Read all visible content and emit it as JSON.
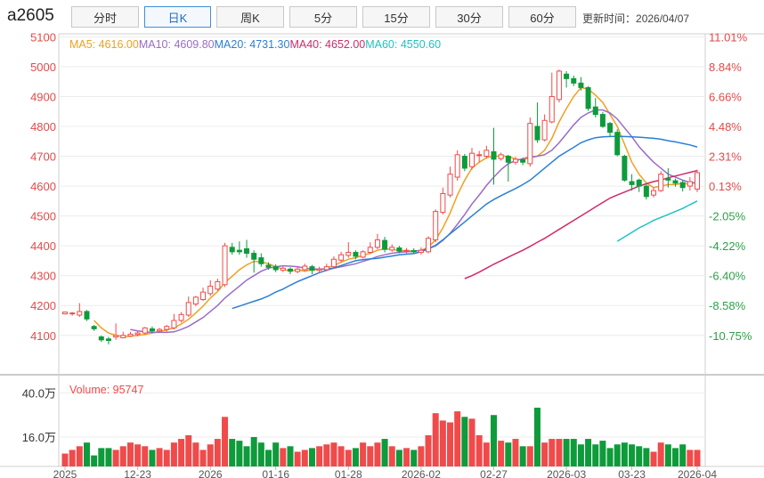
{
  "header": {
    "symbol": "a2605",
    "tabs": [
      {
        "label": "分时",
        "active": false
      },
      {
        "label": "日K",
        "active": true
      },
      {
        "label": "周K",
        "active": false
      },
      {
        "label": "5分",
        "active": false
      },
      {
        "label": "15分",
        "active": false
      },
      {
        "label": "30分",
        "active": false
      },
      {
        "label": "60分",
        "active": false
      }
    ],
    "update_label": "更新时间：",
    "update_time": "2026/04/07"
  },
  "colors": {
    "up": "#f04a4a",
    "down": "#0e9b3b",
    "ma5": "#f0a020",
    "ma10": "#9a6cc8",
    "ma20": "#2a7fd6",
    "ma40": "#d02a6a",
    "ma60": "#20c2c2",
    "axis_left": "#e34a4a",
    "axis_right": "#e34a4a",
    "axis_right_neg": "#2ba24a"
  },
  "chart_data": {
    "type": "candlestick",
    "price_axis": {
      "ticks": [
        5100,
        5000,
        4900,
        4800,
        4700,
        4600,
        4500,
        4400,
        4300,
        4200,
        4100
      ],
      "ylim": [
        3995,
        5110
      ]
    },
    "pct_axis": {
      "ticks": [
        "11.01%",
        "8.84%",
        "6.66%",
        "4.48%",
        "2.31%",
        "0.13%",
        "-2.05%",
        "-4.22%",
        "-6.40%",
        "-8.58%",
        "-10.75%"
      ]
    },
    "date_ticks": [
      "2025",
      "12-23",
      "2026",
      "01-16",
      "01-28",
      "2026-02",
      "02-27",
      "2026-03",
      "03-23",
      "2026-04"
    ],
    "legend": [
      {
        "label": "MA5: ",
        "value": "4616.00",
        "key": "ma5"
      },
      {
        "label": "MA10: ",
        "value": "4609.80",
        "key": "ma10"
      },
      {
        "label": "MA20: ",
        "value": "4731.30",
        "key": "ma20"
      },
      {
        "label": "MA40: ",
        "value": "4652.00",
        "key": "ma40"
      },
      {
        "label": "MA60: ",
        "value": "4550.60",
        "key": "ma60"
      }
    ],
    "volume": {
      "label": "Volume: ",
      "value": "95747",
      "ticks": [
        {
          "v": 40,
          "label": "40.0万"
        },
        {
          "v": 16,
          "label": "16.0万"
        }
      ],
      "ymax": 48
    },
    "candles": [
      [
        4172,
        4178,
        4170,
        4180,
        7
      ],
      [
        4172,
        4175,
        4166,
        4178,
        9
      ],
      [
        4168,
        4180,
        4162,
        4208,
        11
      ],
      [
        4180,
        4155,
        4148,
        4185,
        13
      ],
      [
        4130,
        4122,
        4115,
        4135,
        6
      ],
      [
        4095,
        4085,
        4078,
        4100,
        10
      ],
      [
        4088,
        4083,
        4070,
        4095,
        10
      ],
      [
        4095,
        4100,
        4085,
        4140,
        9
      ],
      [
        4092,
        4100,
        4090,
        4112,
        11
      ],
      [
        4098,
        4104,
        4095,
        4112,
        13
      ],
      [
        4103,
        4108,
        4097,
        4115,
        12
      ],
      [
        4108,
        4125,
        4103,
        4128,
        11
      ],
      [
        4122,
        4115,
        4108,
        4130,
        9
      ],
      [
        4115,
        4120,
        4110,
        4125,
        10
      ],
      [
        4120,
        4130,
        4113,
        4135,
        9
      ],
      [
        4125,
        4150,
        4120,
        4172,
        13
      ],
      [
        4150,
        4170,
        4143,
        4178,
        15
      ],
      [
        4168,
        4210,
        4162,
        4230,
        17
      ],
      [
        4205,
        4228,
        4198,
        4232,
        13
      ],
      [
        4220,
        4245,
        4215,
        4260,
        9
      ],
      [
        4240,
        4265,
        4232,
        4285,
        12
      ],
      [
        4255,
        4280,
        4250,
        4290,
        15
      ],
      [
        4270,
        4400,
        4262,
        4410,
        27
      ],
      [
        4395,
        4380,
        4370,
        4410,
        15
      ],
      [
        4385,
        4380,
        4370,
        4415,
        14
      ],
      [
        4390,
        4375,
        4360,
        4420,
        11
      ],
      [
        4375,
        4355,
        4310,
        4385,
        16
      ],
      [
        4360,
        4340,
        4330,
        4375,
        13
      ],
      [
        4335,
        4328,
        4320,
        4345,
        9
      ],
      [
        4330,
        4320,
        4312,
        4338,
        13
      ],
      [
        4318,
        4325,
        4312,
        4330,
        10
      ],
      [
        4322,
        4315,
        4305,
        4328,
        11
      ],
      [
        4314,
        4322,
        4308,
        4330,
        8
      ],
      [
        4320,
        4332,
        4315,
        4340,
        9
      ],
      [
        4330,
        4318,
        4305,
        4336,
        10
      ],
      [
        4318,
        4322,
        4310,
        4330,
        11
      ],
      [
        4320,
        4330,
        4315,
        4340,
        12
      ],
      [
        4330,
        4355,
        4325,
        4365,
        13
      ],
      [
        4352,
        4370,
        4345,
        4380,
        11
      ],
      [
        4368,
        4378,
        4360,
        4412,
        9
      ],
      [
        4378,
        4365,
        4355,
        4385,
        10
      ],
      [
        4362,
        4380,
        4358,
        4385,
        13
      ],
      [
        4378,
        4395,
        4373,
        4412,
        11
      ],
      [
        4395,
        4420,
        4388,
        4440,
        13
      ],
      [
        4418,
        4388,
        4378,
        4430,
        15
      ],
      [
        4386,
        4395,
        4380,
        4405,
        11
      ],
      [
        4393,
        4382,
        4375,
        4400,
        9
      ],
      [
        4382,
        4385,
        4374,
        4393,
        10
      ],
      [
        4384,
        4380,
        4373,
        4392,
        9
      ],
      [
        4378,
        4385,
        4370,
        4395,
        11
      ],
      [
        4380,
        4425,
        4375,
        4432,
        17
      ],
      [
        4420,
        4515,
        4412,
        4522,
        29
      ],
      [
        4512,
        4575,
        4505,
        4595,
        25
      ],
      [
        4570,
        4640,
        4562,
        4665,
        24
      ],
      [
        4630,
        4705,
        4618,
        4720,
        30
      ],
      [
        4700,
        4660,
        4650,
        4708,
        27
      ],
      [
        4665,
        4710,
        4655,
        4728,
        26
      ],
      [
        4705,
        4705,
        4680,
        4718,
        17
      ],
      [
        4700,
        4720,
        4692,
        4735,
        13
      ],
      [
        4715,
        4690,
        4605,
        4795,
        28
      ],
      [
        4692,
        4705,
        4685,
        4712,
        14
      ],
      [
        4700,
        4680,
        4615,
        4705,
        13
      ],
      [
        4680,
        4690,
        4672,
        4698,
        15
      ],
      [
        4688,
        4680,
        4670,
        4695,
        11
      ],
      [
        4675,
        4810,
        4665,
        4830,
        11
      ],
      [
        4800,
        4755,
        4745,
        4880,
        32
      ],
      [
        4755,
        4820,
        4750,
        4840,
        13
      ],
      [
        4815,
        4900,
        4810,
        4980,
        15
      ],
      [
        4890,
        4985,
        4880,
        4990,
        15
      ],
      [
        4975,
        4960,
        4930,
        4985,
        15
      ],
      [
        4960,
        4945,
        4935,
        4970,
        15
      ],
      [
        4945,
        4930,
        4920,
        4965,
        12
      ],
      [
        4930,
        4860,
        4852,
        4935,
        15
      ],
      [
        4865,
        4840,
        4830,
        4895,
        12
      ],
      [
        4840,
        4800,
        4795,
        4848,
        14
      ],
      [
        4810,
        4780,
        4765,
        4815,
        10
      ],
      [
        4780,
        4705,
        4700,
        4790,
        12
      ],
      [
        4700,
        4620,
        4615,
        4705,
        13
      ],
      [
        4615,
        4605,
        4585,
        4640,
        12
      ],
      [
        4620,
        4600,
        4580,
        4625,
        11
      ],
      [
        4600,
        4565,
        4555,
        4608,
        10
      ],
      [
        4570,
        4585,
        4562,
        4595,
        8
      ],
      [
        4585,
        4640,
        4580,
        4650,
        13
      ],
      [
        4625,
        4620,
        4595,
        4660,
        12
      ],
      [
        4618,
        4610,
        4598,
        4625,
        10
      ],
      [
        4612,
        4595,
        4582,
        4620,
        12
      ],
      [
        4600,
        4615,
        4585,
        4630,
        9
      ],
      [
        4590,
        4645,
        4580,
        4655,
        9
      ]
    ],
    "ma": {
      "ma5": [
        null,
        null,
        null,
        null,
        4150,
        4125,
        4108,
        4100,
        4096,
        4097,
        4100,
        4103,
        4108,
        4113,
        4118,
        4125,
        4138,
        4154,
        4175,
        4198,
        4225,
        4247,
        4277,
        4298,
        4320,
        4336,
        4348,
        4346,
        4340,
        4330,
        4322,
        4315,
        4320,
        4315,
        4320,
        4320,
        4325,
        4334,
        4345,
        4355,
        4360,
        4368,
        4375,
        4385,
        4390,
        4388,
        4385,
        4383,
        4382,
        4385,
        4395,
        4420,
        4460,
        4510,
        4570,
        4620,
        4660,
        4680,
        4695,
        4700,
        4700,
        4700,
        4690,
        4688,
        4695,
        4700,
        4720,
        4760,
        4815,
        4860,
        4900,
        4930,
        4925,
        4905,
        4880,
        4840,
        4800,
        4740,
        4680,
        4640,
        4610,
        4595,
        4600,
        4605,
        4605,
        4610,
        4605,
        4616
      ],
      "ma10": [
        null,
        null,
        null,
        null,
        null,
        null,
        null,
        null,
        null,
        4120,
        4115,
        4112,
        4110,
        4110,
        4110,
        4112,
        4120,
        4130,
        4145,
        4160,
        4180,
        4200,
        4225,
        4245,
        4265,
        4285,
        4300,
        4315,
        4325,
        4330,
        4333,
        4332,
        4330,
        4325,
        4322,
        4322,
        4322,
        4325,
        4330,
        4335,
        4340,
        4348,
        4355,
        4364,
        4370,
        4375,
        4378,
        4380,
        4382,
        4385,
        4390,
        4400,
        4418,
        4442,
        4472,
        4505,
        4540,
        4570,
        4602,
        4630,
        4655,
        4675,
        4685,
        4692,
        4698,
        4700,
        4705,
        4720,
        4745,
        4775,
        4805,
        4830,
        4845,
        4855,
        4855,
        4845,
        4825,
        4795,
        4765,
        4732,
        4705,
        4680,
        4660,
        4640,
        4630,
        4620,
        4612,
        4610
      ],
      "ma20": [
        null,
        null,
        null,
        null,
        null,
        null,
        null,
        null,
        null,
        null,
        null,
        null,
        null,
        null,
        null,
        null,
        null,
        null,
        null,
        null,
        null,
        null,
        null,
        4190,
        4198,
        4206,
        4214,
        4222,
        4232,
        4245,
        4255,
        4268,
        4280,
        4290,
        4300,
        4310,
        4318,
        4326,
        4334,
        4342,
        4350,
        4354,
        4356,
        4358,
        4362,
        4366,
        4370,
        4372,
        4374,
        4380,
        4390,
        4402,
        4420,
        4440,
        4460,
        4480,
        4500,
        4520,
        4540,
        4555,
        4568,
        4580,
        4592,
        4605,
        4620,
        4640,
        4660,
        4680,
        4700,
        4715,
        4730,
        4745,
        4755,
        4762,
        4765,
        4766,
        4767,
        4766,
        4765,
        4764,
        4762,
        4760,
        4757,
        4752,
        4748,
        4743,
        4738,
        4731
      ],
      "ma40": [
        null,
        null,
        null,
        null,
        null,
        null,
        null,
        null,
        null,
        null,
        null,
        null,
        null,
        null,
        null,
        null,
        null,
        null,
        null,
        null,
        null,
        null,
        null,
        null,
        null,
        null,
        null,
        null,
        null,
        null,
        null,
        null,
        null,
        null,
        null,
        null,
        null,
        null,
        null,
        null,
        null,
        null,
        null,
        null,
        null,
        null,
        null,
        null,
        null,
        null,
        null,
        null,
        null,
        null,
        null,
        4290,
        4300,
        4312,
        4325,
        4338,
        4350,
        4362,
        4374,
        4385,
        4398,
        4412,
        4425,
        4440,
        4455,
        4470,
        4485,
        4500,
        4515,
        4530,
        4545,
        4560,
        4570,
        4580,
        4590,
        4600,
        4608,
        4615,
        4620,
        4628,
        4634,
        4640,
        4646,
        4652
      ],
      "ma60": [
        null,
        null,
        null,
        null,
        null,
        null,
        null,
        null,
        null,
        null,
        null,
        null,
        null,
        null,
        null,
        null,
        null,
        null,
        null,
        null,
        null,
        null,
        null,
        null,
        null,
        null,
        null,
        null,
        null,
        null,
        null,
        null,
        null,
        null,
        null,
        null,
        null,
        null,
        null,
        null,
        null,
        null,
        null,
        null,
        null,
        null,
        null,
        null,
        null,
        null,
        null,
        null,
        null,
        null,
        null,
        null,
        null,
        null,
        null,
        null,
        null,
        null,
        null,
        null,
        null,
        null,
        null,
        null,
        null,
        null,
        null,
        null,
        null,
        null,
        null,
        null,
        4415,
        4430,
        4445,
        4460,
        4472,
        4485,
        4495,
        4505,
        4515,
        4525,
        4538,
        4550
      ]
    }
  }
}
